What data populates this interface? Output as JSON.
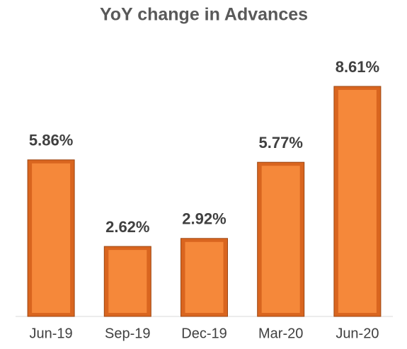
{
  "chart_data": {
    "type": "bar",
    "title": "YoY change in Advances",
    "categories": [
      "Jun-19",
      "Sep-19",
      "Dec-19",
      "Mar-20",
      "Jun-20"
    ],
    "values": [
      5.86,
      2.62,
      2.92,
      5.77,
      8.61
    ],
    "value_labels": [
      "5.86%",
      "2.62%",
      "2.92%",
      "5.77%",
      "8.61%"
    ],
    "color": "#f5883a"
  }
}
